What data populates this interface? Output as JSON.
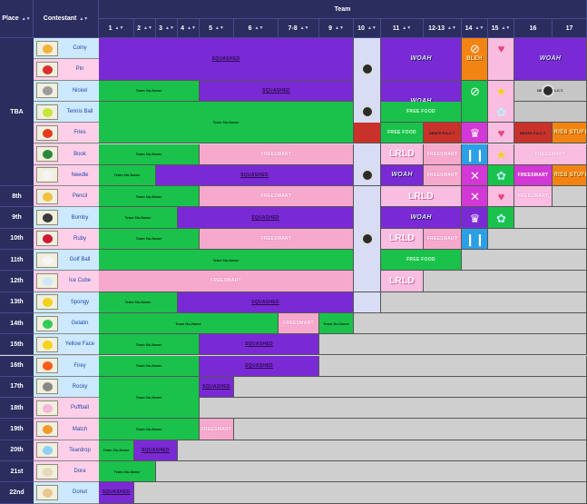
{
  "header": {
    "place": "Place",
    "contestant": "Contestant",
    "team": "Team",
    "sort_glyph": "▲▼",
    "episodes": [
      "1",
      "2",
      "3",
      "4",
      "5",
      "6",
      "7-8",
      "9",
      "10",
      "11",
      "12-13",
      "14",
      "15",
      "16",
      "17"
    ]
  },
  "places": [
    {
      "label": "TBA"
    },
    {
      "label": "8th"
    },
    {
      "label": "9th"
    },
    {
      "label": "10th"
    },
    {
      "label": "11th"
    },
    {
      "label": "12th"
    },
    {
      "label": "13th"
    },
    {
      "label": "14th"
    },
    {
      "label": "15th"
    },
    {
      "label": "16th"
    },
    {
      "label": "17th"
    },
    {
      "label": "18th"
    },
    {
      "label": "19th"
    },
    {
      "label": "20th"
    },
    {
      "label": "21st"
    },
    {
      "label": "22nd"
    }
  ],
  "contestants": [
    {
      "name": "Coiny"
    },
    {
      "name": "Pin"
    },
    {
      "name": "Nickel"
    },
    {
      "name": "Tennis Ball"
    },
    {
      "name": "Fries"
    },
    {
      "name": "Book"
    },
    {
      "name": "Needle"
    },
    {
      "name": "Pencil"
    },
    {
      "name": "Bomby"
    },
    {
      "name": "Ruby"
    },
    {
      "name": "Golf Ball"
    },
    {
      "name": "Ice Cube"
    },
    {
      "name": "Spongy"
    },
    {
      "name": "Gelatin"
    },
    {
      "name": "Yellow Face"
    },
    {
      "name": "Firey"
    },
    {
      "name": "Rocky"
    },
    {
      "name": "Puffball"
    },
    {
      "name": "Match"
    },
    {
      "name": "Teardrop"
    },
    {
      "name": "Dora"
    },
    {
      "name": "Donut"
    }
  ],
  "labels": {
    "team_no_name": "Team No-Name",
    "squashed": "SQUASHED",
    "woah": "WOAH",
    "lrld": "LRLD",
    "free_food": "FREE FOOD",
    "death_pact": "DEATH P.A.C.T.",
    "fries_stuff": "FRIES STUFF",
    "freesmart": "FREESMART",
    "bleh": "BLEH"
  },
  "colors": {
    "header_bg": "#2a2d5e",
    "team_no_name": "#1ac24c",
    "squashed": "#7a2ad4",
    "freesmart": "#f6a9cd",
    "empty": "#d4d4d4",
    "lavender": "#d8dcf5"
  }
}
